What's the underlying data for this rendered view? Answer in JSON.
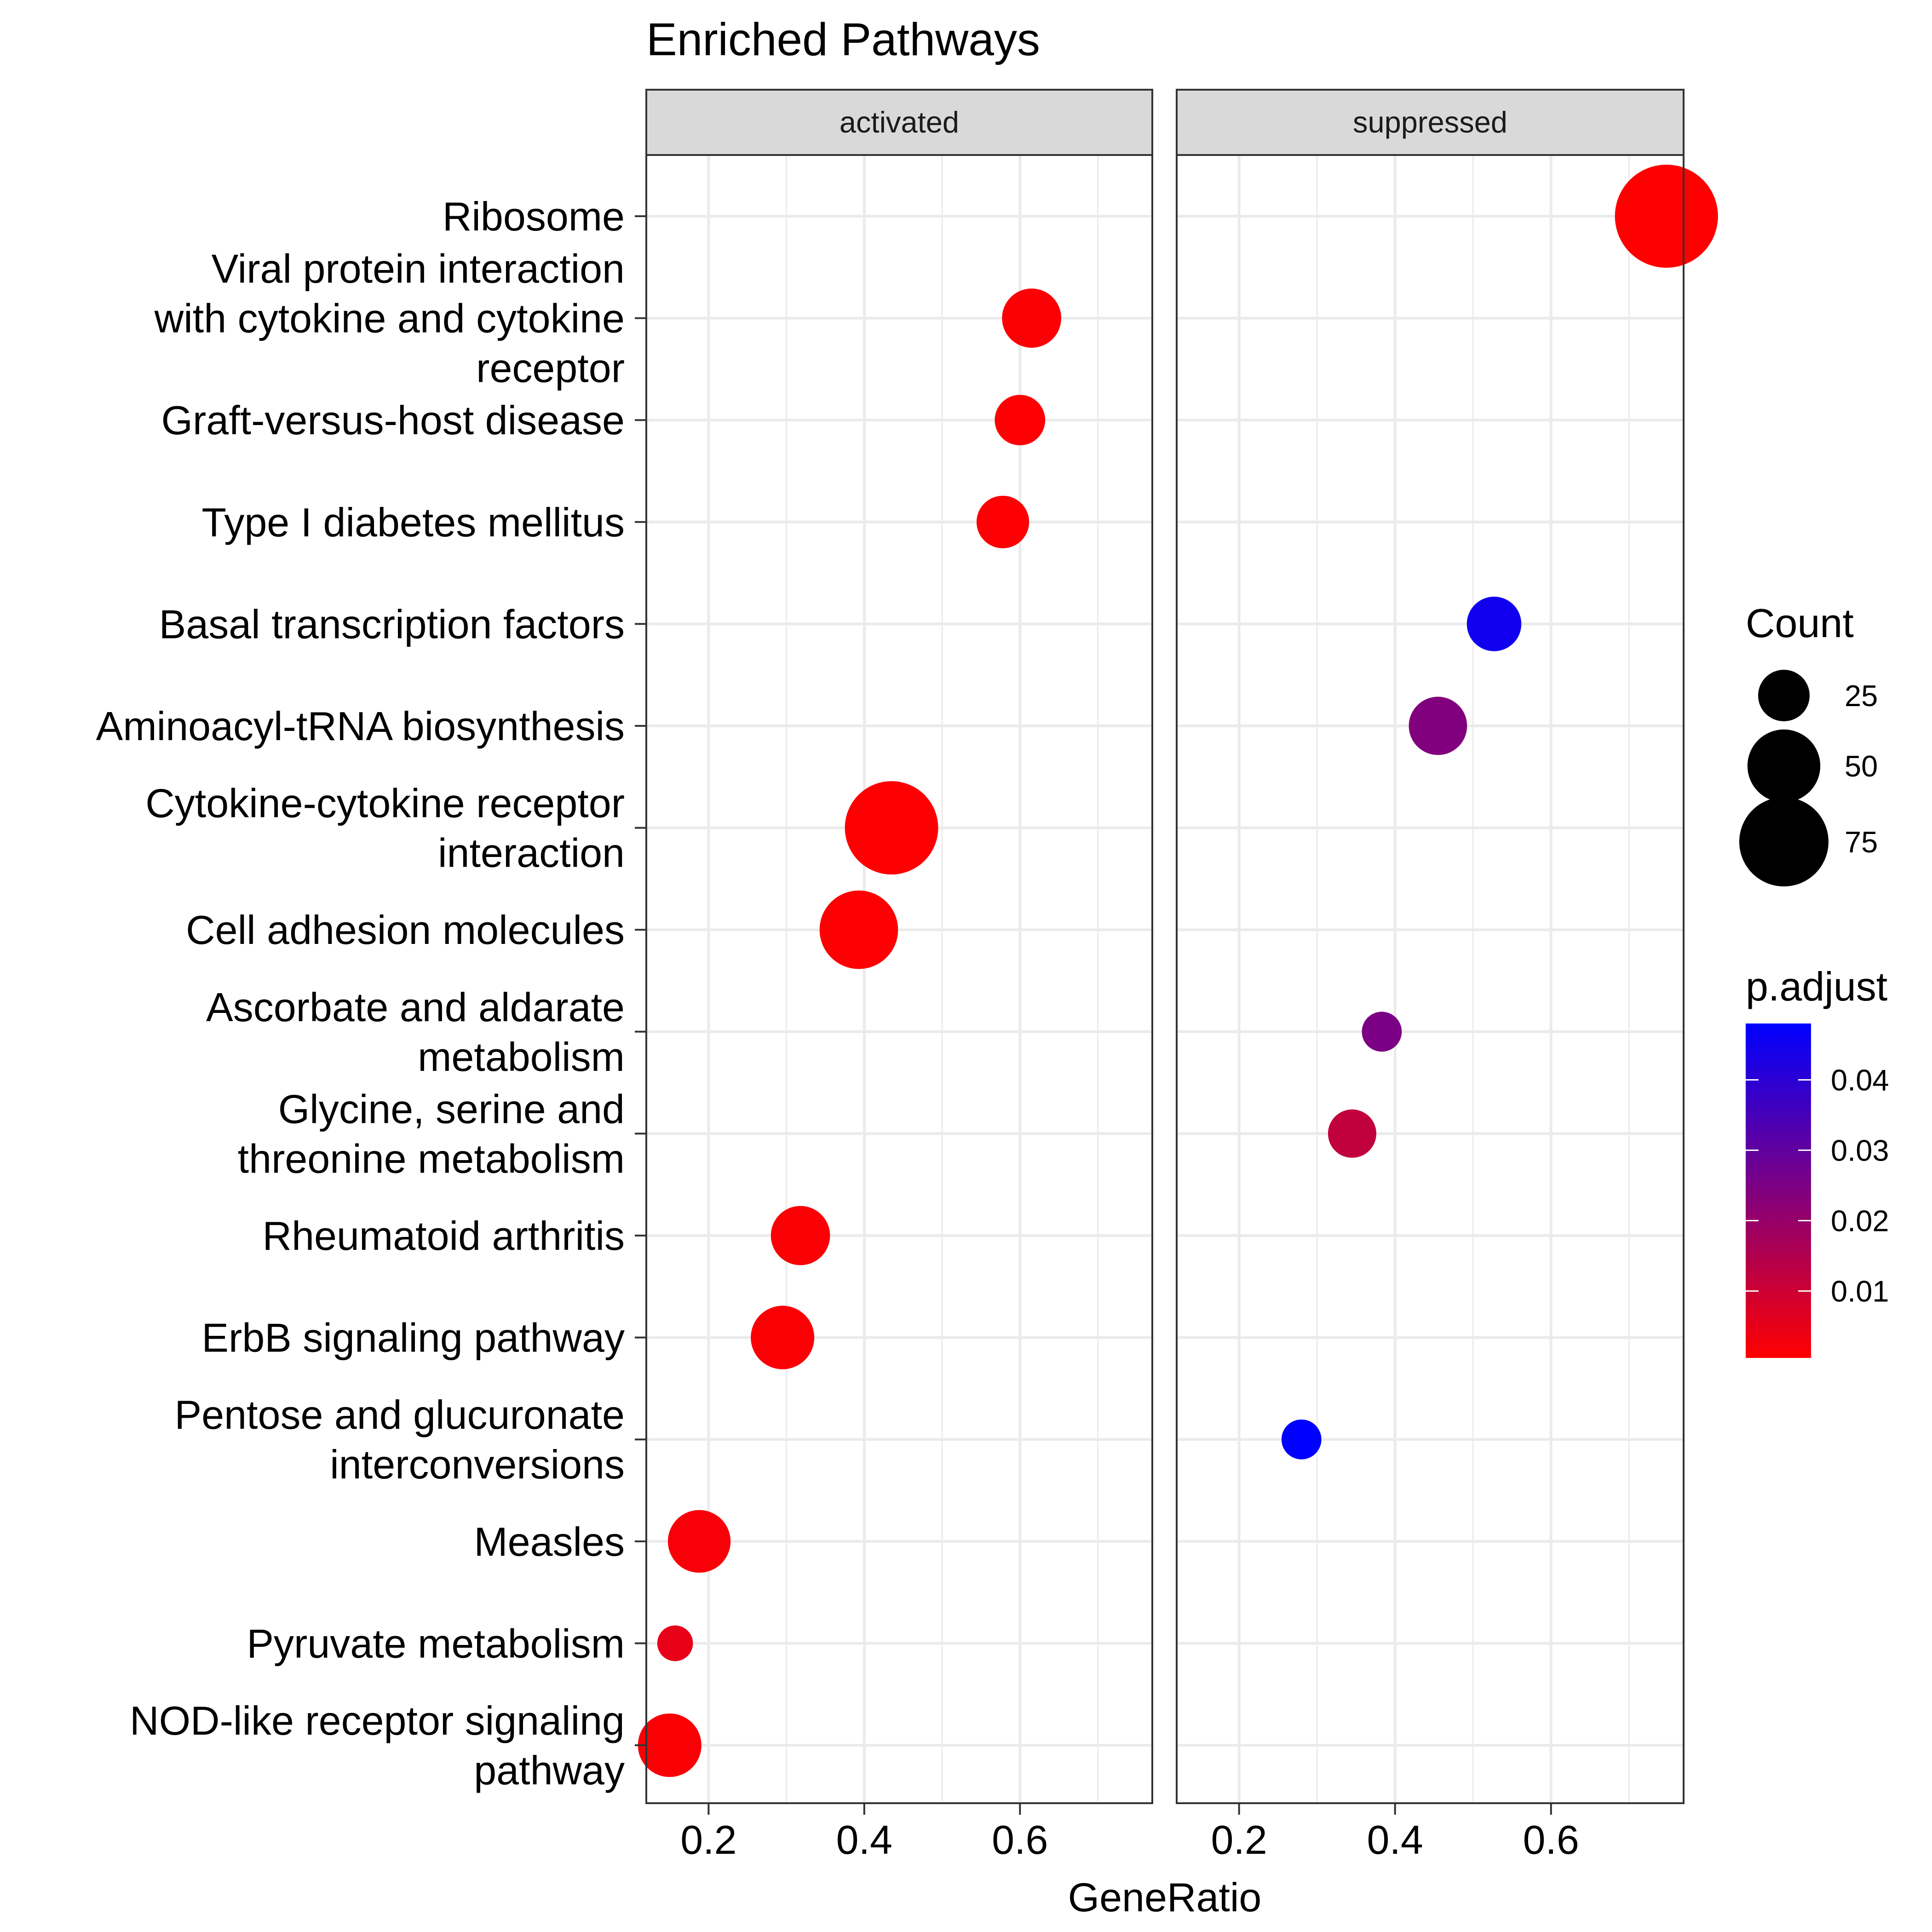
{
  "chart_data": {
    "type": "scatter",
    "title": "Enriched Pathways",
    "xlabel": "GeneRatio",
    "ylabel": "",
    "xlim": [
      0.12,
      0.77
    ],
    "x_ticks": [
      0.2,
      0.4,
      0.6
    ],
    "x_tick_labels": [
      "0.2",
      "0.4",
      "0.6"
    ],
    "grid": true,
    "facets": [
      "activated",
      "suppressed"
    ],
    "categories": [
      "Ribosome",
      "Viral protein interaction with cytokine and cytokine receptor",
      "Graft-versus-host disease",
      "Type I diabetes mellitus",
      "Basal transcription factors",
      "Aminoacyl-tRNA biosynthesis",
      "Cytokine-cytokine receptor interaction",
      "Cell adhesion molecules",
      "Ascorbate and aldarate metabolism",
      "Glycine, serine and threonine metabolism",
      "Rheumatoid arthritis",
      "ErbB signaling pathway",
      "Pentose and glucuronate interconversions",
      "Measles",
      "Pyruvate metabolism",
      "NOD-like receptor signaling pathway"
    ],
    "category_lines": [
      [
        "Ribosome"
      ],
      [
        "Viral protein interaction",
        "with cytokine and cytokine",
        "receptor"
      ],
      [
        "Graft-versus-host disease"
      ],
      [
        "Type I diabetes mellitus"
      ],
      [
        "Basal transcription factors"
      ],
      [
        "Aminoacyl-tRNA biosynthesis"
      ],
      [
        "Cytokine-cytokine receptor",
        "interaction"
      ],
      [
        "Cell adhesion molecules"
      ],
      [
        "Ascorbate and aldarate",
        "metabolism"
      ],
      [
        "Glycine, serine and",
        "threonine metabolism"
      ],
      [
        "Rheumatoid arthritis"
      ],
      [
        "ErbB signaling pathway"
      ],
      [
        "Pentose and glucuronate",
        "interconversions"
      ],
      [
        "Measles"
      ],
      [
        "Pyruvate metabolism"
      ],
      [
        "NOD-like receptor signaling",
        "pathway"
      ]
    ],
    "points": [
      {
        "facet": "activated",
        "category": "Viral protein interaction with cytokine and cytokine receptor",
        "gene_ratio": 0.615,
        "count": 33,
        "p_adjust": 0.0012
      },
      {
        "facet": "activated",
        "category": "Graft-versus-host disease",
        "gene_ratio": 0.6,
        "count": 24,
        "p_adjust": 0.001
      },
      {
        "facet": "activated",
        "category": "Type I diabetes mellitus",
        "gene_ratio": 0.578,
        "count": 26,
        "p_adjust": 0.001
      },
      {
        "facet": "activated",
        "category": "Cytokine-cytokine receptor interaction",
        "gene_ratio": 0.435,
        "count": 82,
        "p_adjust": 0.0008
      },
      {
        "facet": "activated",
        "category": "Cell adhesion molecules",
        "gene_ratio": 0.393,
        "count": 58,
        "p_adjust": 0.001
      },
      {
        "facet": "activated",
        "category": "Rheumatoid arthritis",
        "gene_ratio": 0.318,
        "count": 33,
        "p_adjust": 0.0012
      },
      {
        "facet": "activated",
        "category": "ErbB signaling pathway",
        "gene_ratio": 0.295,
        "count": 38,
        "p_adjust": 0.0015
      },
      {
        "facet": "activated",
        "category": "Measles",
        "gene_ratio": 0.188,
        "count": 37,
        "p_adjust": 0.002
      },
      {
        "facet": "activated",
        "category": "Pyruvate metabolism",
        "gene_ratio": 0.157,
        "count": 12,
        "p_adjust": 0.005
      },
      {
        "facet": "activated",
        "category": "NOD-like receptor signaling pathway",
        "gene_ratio": 0.15,
        "count": 38,
        "p_adjust": 0.0015
      },
      {
        "facet": "suppressed",
        "category": "Ribosome",
        "gene_ratio": 0.748,
        "count": 100,
        "p_adjust": 0.0005
      },
      {
        "facet": "suppressed",
        "category": "Basal transcription factors",
        "gene_ratio": 0.527,
        "count": 28,
        "p_adjust": 0.045
      },
      {
        "facet": "suppressed",
        "category": "Aminoacyl-tRNA biosynthesis",
        "gene_ratio": 0.455,
        "count": 32,
        "p_adjust": 0.024
      },
      {
        "facet": "suppressed",
        "category": "Ascorbate and aldarate metabolism",
        "gene_ratio": 0.383,
        "count": 15,
        "p_adjust": 0.025
      },
      {
        "facet": "suppressed",
        "category": "Glycine, serine and threonine metabolism",
        "gene_ratio": 0.345,
        "count": 22,
        "p_adjust": 0.012
      },
      {
        "facet": "suppressed",
        "category": "Pentose and glucuronate interconversions",
        "gene_ratio": 0.28,
        "count": 15,
        "p_adjust": 0.048
      }
    ],
    "legend": {
      "position": "right",
      "size_title": "Count",
      "size_breaks": [
        25,
        50,
        75
      ],
      "size_labels": [
        "25",
        "50",
        "75"
      ],
      "color_title": "p.adjust",
      "color_breaks": [
        0.01,
        0.02,
        0.03,
        0.04
      ],
      "color_labels": [
        "0.01",
        "0.02",
        "0.03",
        "0.04"
      ],
      "color_range": [
        0.0005,
        0.048
      ],
      "color_low": "#FF0000",
      "color_high": "#0000FF"
    },
    "colors": {
      "strip_fill": "#D9D9D9",
      "panel_border": "#333333",
      "grid": "#EBEBEB"
    }
  }
}
